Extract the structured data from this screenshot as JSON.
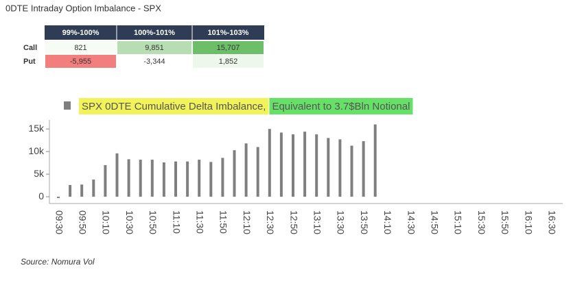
{
  "table": {
    "title": "0DTE Intraday Option Imbalance - SPX",
    "columns": [
      "99%-100%",
      "100%-101%",
      "101%-103%"
    ],
    "rows": [
      {
        "label": "Call",
        "cells": [
          "821",
          "9,851",
          "15,707"
        ],
        "cell_colors": [
          "#f7fbf6",
          "#b7deb2",
          "#6cbf68"
        ]
      },
      {
        "label": "Put",
        "cells": [
          "-5,955",
          "-3,344",
          "1,852"
        ],
        "cell_colors": [
          "#f27e7e",
          "#ffffff",
          "#eef7ec"
        ]
      }
    ],
    "header_color": "#2e3d55"
  },
  "chart_data": {
    "type": "bar",
    "series": [
      {
        "name": "SPX 0DTE Cumulative Delta Imbalance,",
        "color": "#7f7f7f",
        "values": [
          -300,
          2600,
          2700,
          3800,
          7000,
          9600,
          8300,
          8200,
          8200,
          7600,
          7800,
          7800,
          8200,
          7700,
          8600,
          10300,
          11800,
          11000,
          15000,
          14200,
          13800,
          14400,
          13800,
          13000,
          12700,
          11300,
          12300,
          16000,
          null,
          null,
          null,
          null,
          null,
          null,
          null,
          null,
          null,
          null,
          null,
          null,
          null,
          null,
          null
        ]
      }
    ],
    "categories": [
      "09:30",
      null,
      "09:50",
      null,
      "10:10",
      null,
      "10:30",
      null,
      "10:50",
      null,
      "11:10",
      null,
      "11:30",
      null,
      "11:50",
      null,
      "12:10",
      null,
      "12:30",
      null,
      "12:50",
      null,
      "13:10",
      null,
      "13:30",
      null,
      "13:50",
      null,
      "14:10",
      null,
      "14:30",
      null,
      "14:50",
      null,
      "15:10",
      null,
      "15:30",
      null,
      "15:50",
      null,
      "16:10",
      null,
      "16:30"
    ],
    "annotation": "Equivalent to 3.7$Bln Notional",
    "ylim": [
      -1500,
      17000
    ],
    "yticks": [
      0,
      {
        "value": 5000,
        "label": "5k"
      },
      {
        "value": 10000,
        "label": "10k"
      },
      {
        "value": 15000,
        "label": "15k"
      }
    ],
    "source": "Source: Nomura Vol",
    "legend_highlight": "#f2f25a",
    "annotation_highlight": "#66e066",
    "grid": false
  }
}
